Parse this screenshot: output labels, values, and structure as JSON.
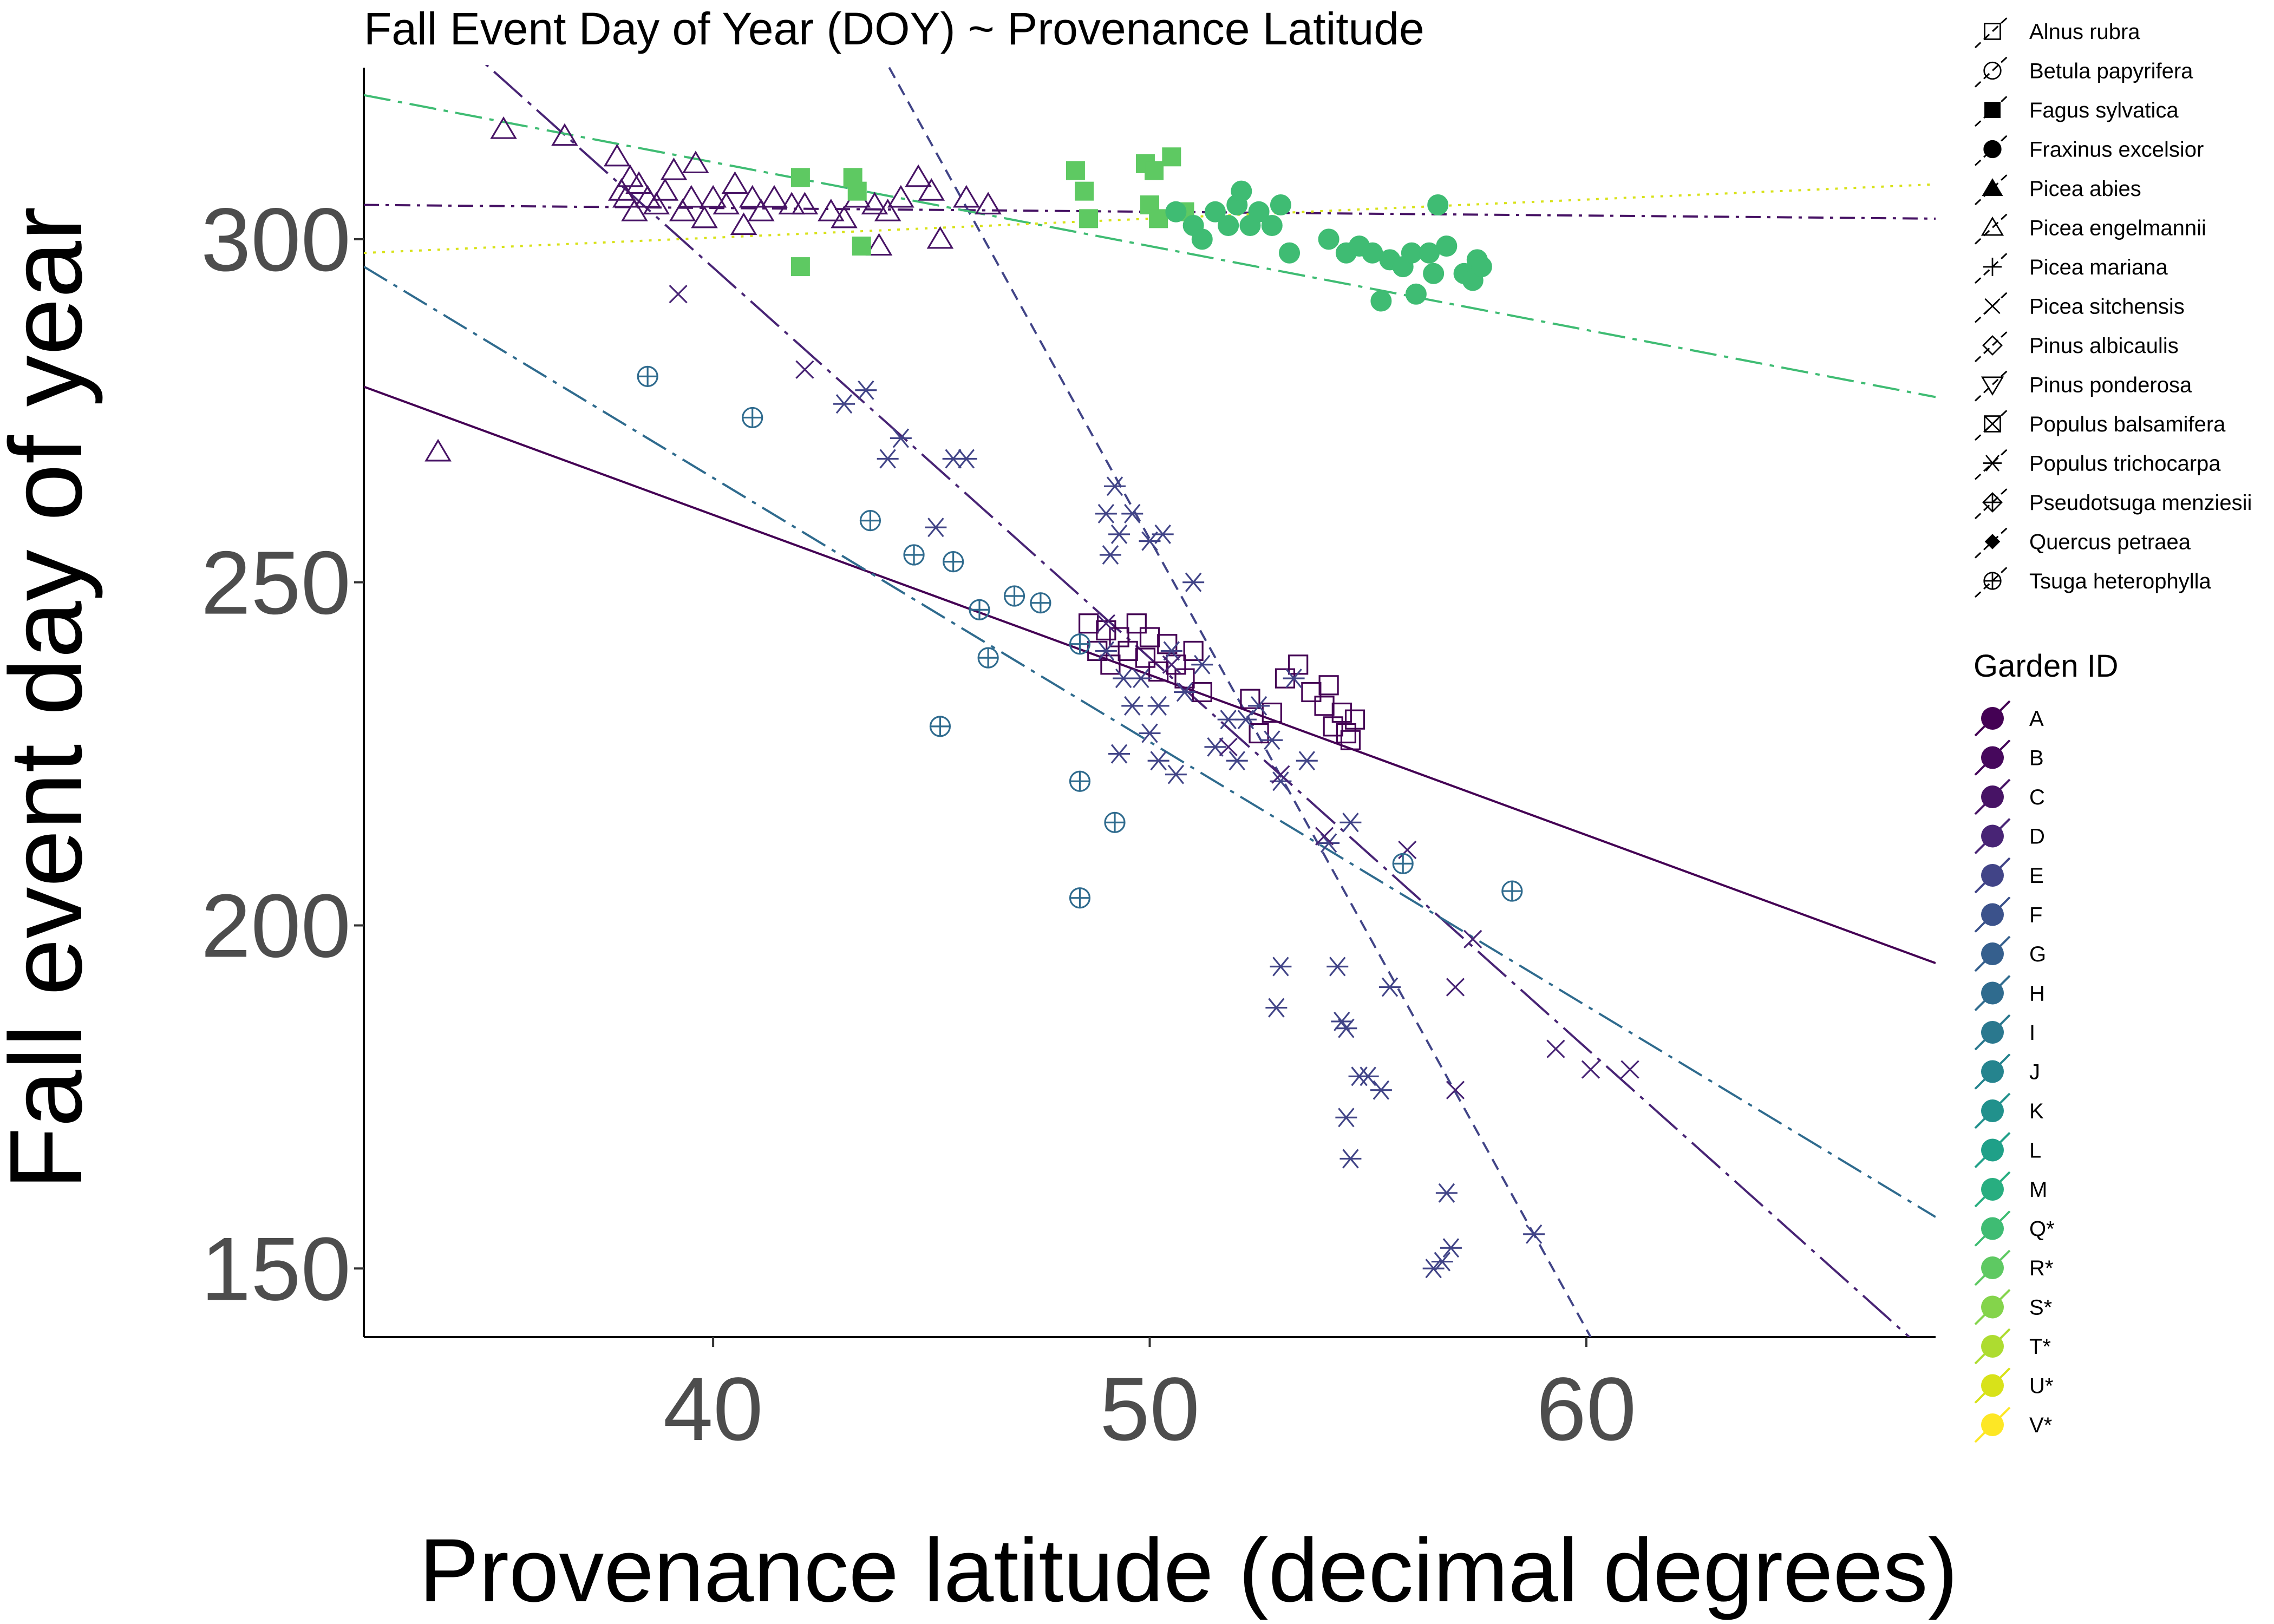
{
  "chart_data": {
    "type": "scatter",
    "title": "Fall Event Day of Year (DOY) ~ Provenance Latitude",
    "xlabel": "Provenance latitude (decimal degrees)",
    "ylabel": "Fall event day of year",
    "xlim": [
      32,
      68
    ],
    "ylim": [
      140,
      325
    ],
    "x_ticks": [
      40,
      50,
      60
    ],
    "y_ticks": [
      150,
      200,
      250,
      300
    ],
    "grid": false,
    "species_legend": [
      {
        "label": "Alnus rubra",
        "shape": "square-open"
      },
      {
        "label": "Betula papyrifera",
        "shape": "circle-open"
      },
      {
        "label": "Fagus sylvatica",
        "shape": "square-filled"
      },
      {
        "label": "Fraxinus excelsior",
        "shape": "circle-filled"
      },
      {
        "label": "Picea abies",
        "shape": "triangle-filled"
      },
      {
        "label": "Picea engelmannii",
        "shape": "triangle-open"
      },
      {
        "label": "Picea mariana",
        "shape": "plus"
      },
      {
        "label": "Picea sitchensis",
        "shape": "cross"
      },
      {
        "label": "Pinus albicaulis",
        "shape": "diamond-open"
      },
      {
        "label": "Pinus ponderosa",
        "shape": "triangle-down-open"
      },
      {
        "label": "Populus balsamifera",
        "shape": "square-cross"
      },
      {
        "label": "Populus trichocarpa",
        "shape": "asterisk"
      },
      {
        "label": "Pseudotsuga menziesii",
        "shape": "diamond-plus"
      },
      {
        "label": "Quercus petraea",
        "shape": "diamond-filled"
      },
      {
        "label": "Tsuga heterophylla",
        "shape": "circle-plus"
      }
    ],
    "garden_legend_title": "Garden ID",
    "garden_legend": [
      {
        "label": "A",
        "color": "#440154"
      },
      {
        "label": "B",
        "color": "#46085c"
      },
      {
        "label": "C",
        "color": "#471365"
      },
      {
        "label": "D",
        "color": "#482475"
      },
      {
        "label": "E",
        "color": "#414487"
      },
      {
        "label": "F",
        "color": "#3b528b"
      },
      {
        "label": "G",
        "color": "#355f8d"
      },
      {
        "label": "H",
        "color": "#2f6b8e"
      },
      {
        "label": "I",
        "color": "#2a788e"
      },
      {
        "label": "J",
        "color": "#25848e"
      },
      {
        "label": "K",
        "color": "#21918c"
      },
      {
        "label": "L",
        "color": "#1fa088"
      },
      {
        "label": "M",
        "color": "#28ae80"
      },
      {
        "label": "Q*",
        "color": "#3fbc73"
      },
      {
        "label": "R*",
        "color": "#5ec962"
      },
      {
        "label": "S*",
        "color": "#84d44b"
      },
      {
        "label": "T*",
        "color": "#addc30"
      },
      {
        "label": "U*",
        "color": "#d8e219"
      },
      {
        "label": "V*",
        "color": "#fde725"
      }
    ],
    "regression_lines": [
      {
        "garden": "A",
        "color": "#440154",
        "dash": "solid",
        "x": [
          32,
          68
        ],
        "y": [
          278.5,
          194.5
        ]
      },
      {
        "garden": "C",
        "color": "#471365",
        "dash": "dashdot",
        "x": [
          32,
          68
        ],
        "y": [
          305,
          303
        ]
      },
      {
        "garden": "D",
        "color": "#482475",
        "dash": "longdash",
        "x": [
          34,
          67.4
        ],
        "y": [
          330,
          140
        ]
      },
      {
        "garden": "E",
        "color": "#414487",
        "dash": "dashed",
        "x": [
          43.6,
          60.1
        ],
        "y": [
          330,
          140
        ]
      },
      {
        "garden": "H",
        "color": "#2f6b8e",
        "dash": "dashdot-long",
        "x": [
          32,
          68
        ],
        "y": [
          296,
          157.5
        ]
      },
      {
        "garden": "Q*",
        "color": "#3fbc73",
        "dash": "dashdot-long",
        "x": [
          32,
          68
        ],
        "y": [
          321,
          277
        ]
      },
      {
        "garden": "U*",
        "color": "#d8e219",
        "dash": "dotted",
        "x": [
          32,
          68
        ],
        "y": [
          298,
          308
        ]
      }
    ],
    "series": [
      {
        "species": "Picea engelmannii",
        "garden": "C",
        "color": "#471365",
        "shape": "triangle-open",
        "points": [
          [
            33.7,
            269
          ],
          [
            35.2,
            316
          ],
          [
            36.6,
            315
          ],
          [
            37.8,
            312
          ],
          [
            37.9,
            307
          ],
          [
            38.0,
            306
          ],
          [
            38.1,
            309
          ],
          [
            38.2,
            304
          ],
          [
            38.3,
            308
          ],
          [
            38.5,
            306
          ],
          [
            38.7,
            305
          ],
          [
            38.9,
            307
          ],
          [
            39.1,
            310
          ],
          [
            39.3,
            304
          ],
          [
            39.5,
            306
          ],
          [
            39.6,
            311
          ],
          [
            39.8,
            303
          ],
          [
            40.0,
            306
          ],
          [
            40.3,
            305
          ],
          [
            40.5,
            308
          ],
          [
            40.7,
            302
          ],
          [
            40.9,
            306
          ],
          [
            41.1,
            304
          ],
          [
            41.4,
            306
          ],
          [
            41.8,
            305
          ],
          [
            42.1,
            305
          ],
          [
            42.7,
            304
          ],
          [
            43.0,
            303
          ],
          [
            43.3,
            306
          ],
          [
            43.7,
            305
          ],
          [
            43.8,
            299
          ],
          [
            44.0,
            304
          ],
          [
            44.3,
            306
          ],
          [
            44.7,
            309
          ],
          [
            45.0,
            307
          ],
          [
            45.2,
            300
          ],
          [
            45.8,
            306
          ],
          [
            46.3,
            305
          ]
        ]
      },
      {
        "species": "Fagus sylvatica",
        "garden": "R*",
        "color": "#5ec962",
        "shape": "square-filled",
        "points": [
          [
            42.0,
            309
          ],
          [
            42.0,
            296
          ],
          [
            43.2,
            309
          ],
          [
            43.3,
            307
          ],
          [
            43.4,
            299
          ],
          [
            48.3,
            310
          ],
          [
            48.5,
            307
          ],
          [
            48.6,
            303
          ],
          [
            49.9,
            311
          ],
          [
            50.0,
            305
          ],
          [
            50.1,
            310
          ],
          [
            50.2,
            303
          ],
          [
            50.5,
            312
          ],
          [
            50.8,
            304
          ]
        ]
      },
      {
        "species": "Fraxinus excelsior",
        "garden": "Q*",
        "color": "#3fbc73",
        "shape": "circle-filled",
        "points": [
          [
            50.6,
            304
          ],
          [
            51.0,
            302
          ],
          [
            51.2,
            300
          ],
          [
            51.5,
            304
          ],
          [
            51.8,
            302
          ],
          [
            52.0,
            305
          ],
          [
            52.1,
            307
          ],
          [
            52.3,
            302
          ],
          [
            52.5,
            304
          ],
          [
            52.8,
            302
          ],
          [
            53.0,
            305
          ],
          [
            53.2,
            298
          ],
          [
            54.1,
            300
          ],
          [
            54.5,
            298
          ],
          [
            54.8,
            299
          ],
          [
            55.1,
            298
          ],
          [
            55.3,
            291
          ],
          [
            55.5,
            297
          ],
          [
            55.8,
            296
          ],
          [
            56.0,
            298
          ],
          [
            56.1,
            292
          ],
          [
            56.4,
            298
          ],
          [
            56.5,
            295
          ],
          [
            56.6,
            305
          ],
          [
            56.8,
            299
          ],
          [
            57.2,
            295
          ],
          [
            57.4,
            294
          ],
          [
            57.5,
            297
          ],
          [
            57.6,
            296
          ]
        ]
      },
      {
        "species": "Alnus rubra",
        "garden": "A",
        "color": "#440154",
        "shape": "square-open",
        "points": [
          [
            48.6,
            244
          ],
          [
            48.8,
            240
          ],
          [
            49.0,
            243
          ],
          [
            49.1,
            238
          ],
          [
            49.3,
            242
          ],
          [
            49.5,
            240
          ],
          [
            49.7,
            244
          ],
          [
            49.9,
            239
          ],
          [
            50.0,
            242
          ],
          [
            50.2,
            237
          ],
          [
            50.4,
            241
          ],
          [
            50.6,
            238
          ],
          [
            50.8,
            236
          ],
          [
            51.0,
            240
          ],
          [
            51.2,
            234
          ],
          [
            52.3,
            233
          ],
          [
            52.5,
            228
          ],
          [
            52.8,
            231
          ],
          [
            53.1,
            236
          ],
          [
            53.4,
            238
          ],
          [
            53.7,
            234
          ],
          [
            54.0,
            232
          ],
          [
            54.1,
            235
          ],
          [
            54.2,
            229
          ],
          [
            54.4,
            231
          ],
          [
            54.5,
            228
          ],
          [
            54.6,
            227
          ],
          [
            54.7,
            230
          ]
        ]
      },
      {
        "species": "Populus trichocarpa",
        "garden": "E",
        "color": "#414487",
        "shape": "asterisk",
        "points": [
          [
            43.0,
            276
          ],
          [
            43.5,
            278
          ],
          [
            44.0,
            268
          ],
          [
            44.3,
            271
          ],
          [
            45.1,
            258
          ],
          [
            45.5,
            268
          ],
          [
            45.8,
            268
          ],
          [
            49.0,
            260
          ],
          [
            49.2,
            264
          ],
          [
            49.1,
            254
          ],
          [
            49.3,
            257
          ],
          [
            49.6,
            260
          ],
          [
            50.0,
            256
          ],
          [
            50.3,
            257
          ],
          [
            49.0,
            240
          ],
          [
            49.4,
            236
          ],
          [
            49.6,
            232
          ],
          [
            49.8,
            236
          ],
          [
            50.0,
            228
          ],
          [
            50.2,
            232
          ],
          [
            50.5,
            240
          ],
          [
            50.8,
            234
          ],
          [
            51.0,
            250
          ],
          [
            51.2,
            238
          ],
          [
            51.5,
            226
          ],
          [
            51.8,
            230
          ],
          [
            52.0,
            224
          ],
          [
            52.2,
            230
          ],
          [
            52.5,
            232
          ],
          [
            52.8,
            227
          ],
          [
            53.0,
            221
          ],
          [
            53.3,
            236
          ],
          [
            53.6,
            224
          ],
          [
            49.3,
            225
          ],
          [
            50.2,
            224
          ],
          [
            50.6,
            222
          ],
          [
            53.0,
            194
          ],
          [
            52.9,
            188
          ],
          [
            54.1,
            212
          ],
          [
            54.3,
            194
          ],
          [
            54.4,
            186
          ],
          [
            54.5,
            185
          ],
          [
            54.6,
            215
          ],
          [
            54.5,
            172
          ],
          [
            54.6,
            166
          ],
          [
            54.8,
            178
          ],
          [
            55.0,
            178
          ],
          [
            55.3,
            176
          ],
          [
            55.5,
            191
          ],
          [
            56.5,
            150
          ],
          [
            56.7,
            151
          ],
          [
            56.8,
            161
          ],
          [
            56.9,
            153
          ],
          [
            58.8,
            155
          ]
        ]
      },
      {
        "species": "Picea sitchensis",
        "garden": "D",
        "color": "#482475",
        "shape": "cross",
        "points": [
          [
            39.2,
            292
          ],
          [
            42.1,
            281
          ],
          [
            49.0,
            244
          ],
          [
            50.5,
            238
          ],
          [
            51.8,
            226
          ],
          [
            53.0,
            222
          ],
          [
            54.0,
            213
          ],
          [
            55.9,
            211
          ],
          [
            57.0,
            191
          ],
          [
            57.0,
            176
          ],
          [
            57.4,
            198
          ],
          [
            59.3,
            182
          ],
          [
            60.1,
            179
          ],
          [
            61.0,
            179
          ]
        ]
      },
      {
        "species": "Tsuga heterophylla",
        "garden": "H",
        "color": "#2f6b8e",
        "shape": "circle-plus",
        "points": [
          [
            38.5,
            280
          ],
          [
            40.9,
            274
          ],
          [
            43.6,
            259
          ],
          [
            44.6,
            254
          ],
          [
            45.5,
            253
          ],
          [
            45.2,
            229
          ],
          [
            46.1,
            246
          ],
          [
            46.3,
            239
          ],
          [
            46.9,
            248
          ],
          [
            47.5,
            247
          ],
          [
            48.4,
            241
          ],
          [
            48.4,
            221
          ],
          [
            48.4,
            204
          ],
          [
            49.2,
            215
          ],
          [
            55.8,
            209
          ],
          [
            58.3,
            205
          ]
        ]
      }
    ]
  }
}
